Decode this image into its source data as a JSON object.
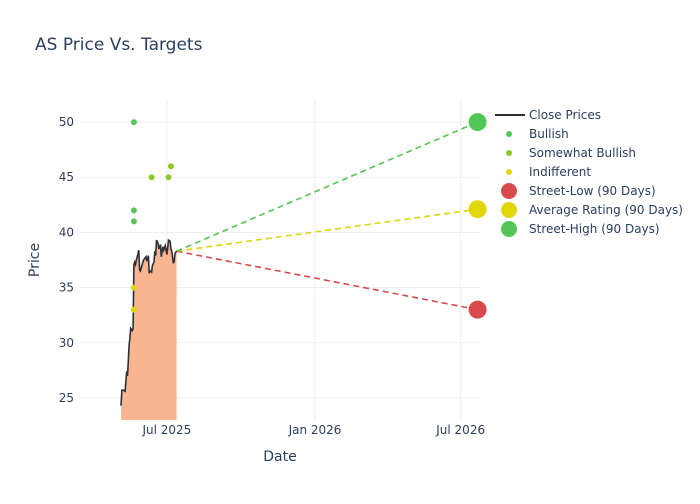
{
  "chart_data": {
    "type": "line",
    "title": "AS Price Vs. Targets",
    "xlabel": "Date",
    "ylabel": "Price",
    "xlim": [
      "2025-03-15",
      "2026-07-25"
    ],
    "ylim": [
      23,
      52
    ],
    "x_ticks": [
      {
        "date": "2025-07-01",
        "label": "Jul 2025"
      },
      {
        "date": "2026-01-01",
        "label": "Jan 2026"
      },
      {
        "date": "2026-07-01",
        "label": "Jul 2026"
      }
    ],
    "y_ticks": [
      25,
      30,
      35,
      40,
      45,
      50
    ],
    "grid": true,
    "legend_position": "right",
    "close_prices": {
      "name": "Close Prices",
      "color": "#2a2f3a",
      "fill_color": "#f9b58f",
      "points": [
        [
          "2025-05-05",
          24.3
        ],
        [
          "2025-05-06",
          25.7
        ],
        [
          "2025-05-08",
          25.7
        ],
        [
          "2025-05-10",
          25.6
        ],
        [
          "2025-05-12",
          27.4
        ],
        [
          "2025-05-13",
          27.0
        ],
        [
          "2025-05-14",
          28.3
        ],
        [
          "2025-05-15",
          29.8
        ],
        [
          "2025-05-16",
          30.4
        ],
        [
          "2025-05-17",
          31.3
        ],
        [
          "2025-05-19",
          31.1
        ],
        [
          "2025-05-20",
          31.3
        ],
        [
          "2025-05-21",
          37.1
        ],
        [
          "2025-05-22",
          37.3
        ],
        [
          "2025-05-23",
          37.1
        ],
        [
          "2025-05-24",
          37.5
        ],
        [
          "2025-05-26",
          38.0
        ],
        [
          "2025-05-27",
          38.4
        ],
        [
          "2025-05-28",
          36.6
        ],
        [
          "2025-05-29",
          36.5
        ],
        [
          "2025-06-01",
          37.3
        ],
        [
          "2025-06-02",
          37.5
        ],
        [
          "2025-06-03",
          37.6
        ],
        [
          "2025-06-05",
          37.8
        ],
        [
          "2025-06-06",
          37.4
        ],
        [
          "2025-06-08",
          37.9
        ],
        [
          "2025-06-09",
          36.3
        ],
        [
          "2025-06-10",
          36.5
        ],
        [
          "2025-06-12",
          36.4
        ],
        [
          "2025-06-13",
          37.0
        ],
        [
          "2025-06-15",
          37.3
        ],
        [
          "2025-06-16",
          38.3
        ],
        [
          "2025-06-17",
          37.9
        ],
        [
          "2025-06-18",
          39.3
        ],
        [
          "2025-06-20",
          39.0
        ],
        [
          "2025-06-21",
          38.5
        ],
        [
          "2025-06-23",
          38.9
        ],
        [
          "2025-06-24",
          37.8
        ],
        [
          "2025-06-25",
          38.3
        ],
        [
          "2025-06-26",
          38.7
        ],
        [
          "2025-06-27",
          38.4
        ],
        [
          "2025-06-29",
          38.8
        ],
        [
          "2025-07-01",
          38.0
        ],
        [
          "2025-07-02",
          38.6
        ],
        [
          "2025-07-03",
          39.3
        ],
        [
          "2025-07-05",
          39.2
        ],
        [
          "2025-07-06",
          38.5
        ],
        [
          "2025-07-07",
          38.3
        ],
        [
          "2025-07-08",
          37.7
        ],
        [
          "2025-07-09",
          37.2
        ],
        [
          "2025-07-10",
          37.4
        ],
        [
          "2025-07-11",
          38.1
        ],
        [
          "2025-07-12",
          38.2
        ],
        [
          "2025-07-13",
          38.3
        ]
      ]
    },
    "analyst_ratings": [
      {
        "name": "Bullish",
        "color": "#52c755",
        "points": [
          [
            "2025-05-21",
            50.0
          ],
          [
            "2025-05-21",
            42.0
          ],
          [
            "2025-05-21",
            41.0
          ]
        ]
      },
      {
        "name": "Somewhat Bullish",
        "color": "#8ccc29",
        "points": [
          [
            "2025-06-12",
            45.0
          ],
          [
            "2025-07-03",
            45.0
          ],
          [
            "2025-07-06",
            46.0
          ]
        ]
      },
      {
        "name": "Indifferent",
        "color": "#e0d60a",
        "points": [
          [
            "2025-05-21",
            35.0
          ],
          [
            "2025-05-21",
            33.0
          ]
        ]
      }
    ],
    "targets": [
      {
        "name": "Street-Low (90 Days)",
        "color": "#d94a4d",
        "start": [
          "2025-07-13",
          38.3
        ],
        "end": [
          "2026-07-22",
          33.0
        ]
      },
      {
        "name": "Average Rating (90 Days)",
        "color": "#e0d60a",
        "start": [
          "2025-07-13",
          38.3
        ],
        "end": [
          "2026-07-22",
          42.1
        ]
      },
      {
        "name": "Street-High (90 Days)",
        "color": "#52c755",
        "start": [
          "2025-07-13",
          38.3
        ],
        "end": [
          "2026-07-22",
          50.0
        ]
      }
    ],
    "legend": [
      "Close Prices",
      "Bullish",
      "Somewhat Bullish",
      "Indifferent",
      "Street-Low (90 Days)",
      "Average Rating (90 Days)",
      "Street-High (90 Days)"
    ]
  }
}
